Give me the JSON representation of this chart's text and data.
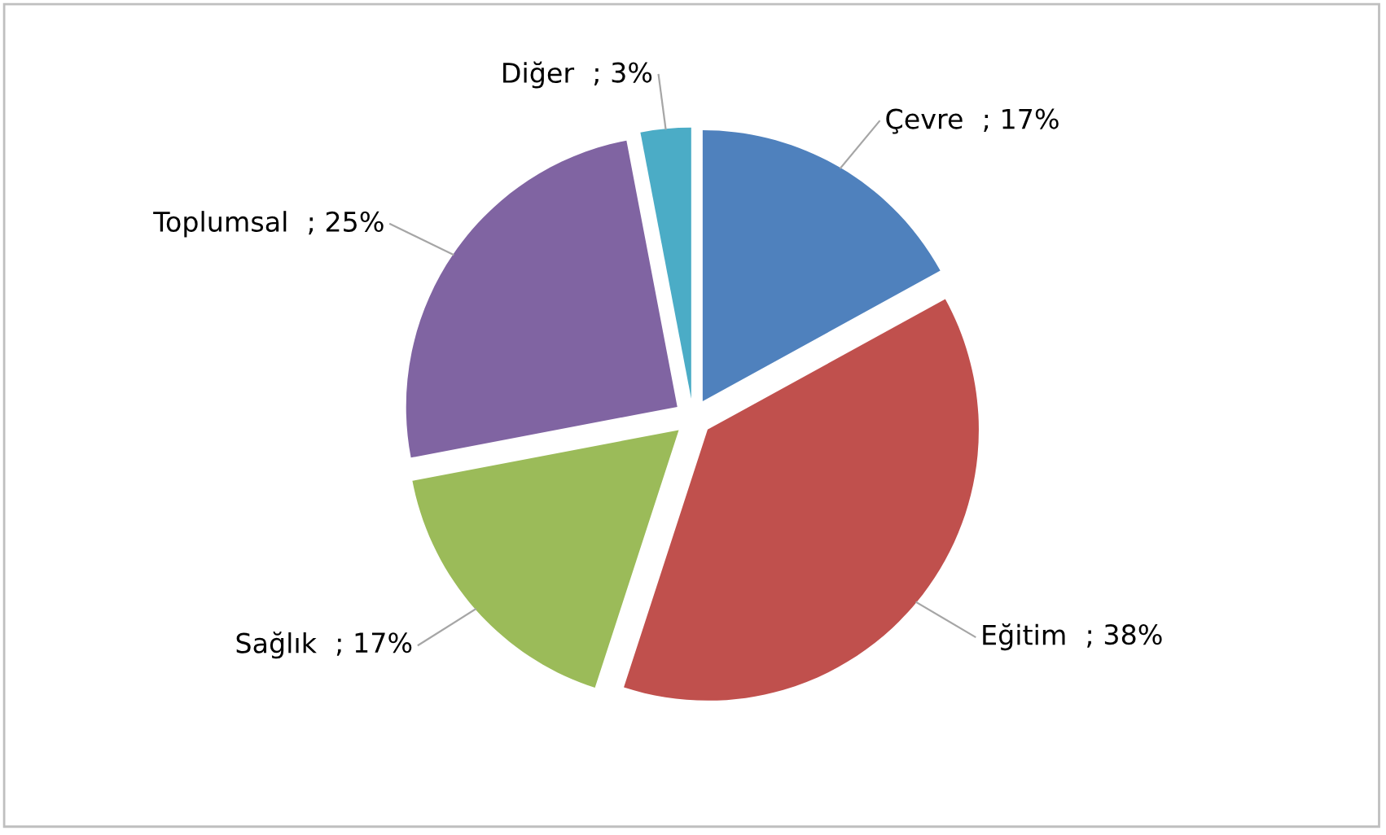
{
  "chart_data": {
    "type": "pie",
    "categories": [
      "Çevre",
      "Eğitim",
      "Sağlık",
      "Toplumsal",
      "Diğer"
    ],
    "values": [
      17,
      38,
      17,
      25,
      3
    ],
    "colors": [
      "#4f81bd",
      "#c0504d",
      "#9bbb59",
      "#8064a2",
      "#4bacc6"
    ],
    "value_labels": [
      "; 17%",
      "; 38%",
      "; 17%",
      "; 25%",
      "; 3%"
    ],
    "legend": false
  }
}
